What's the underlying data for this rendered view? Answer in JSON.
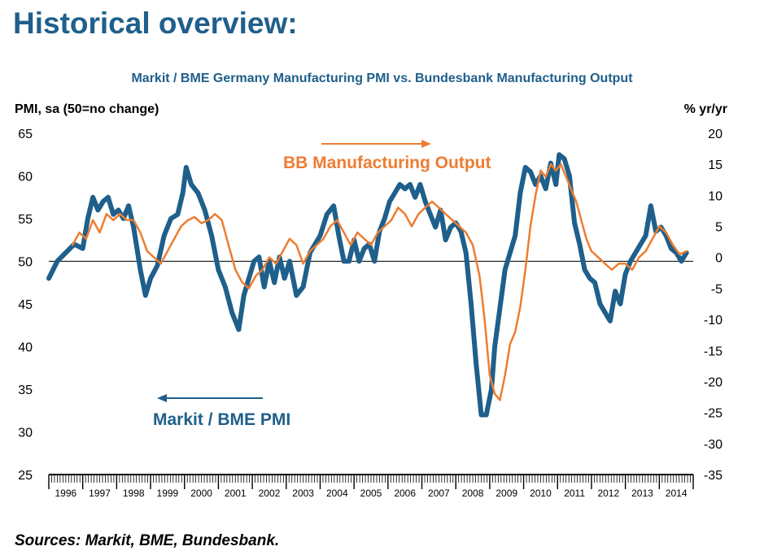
{
  "heading": "Historical overview:",
  "source": "Sources: Markit, BME, Bundesbank.",
  "colors": {
    "pmi": "#1f5f8b",
    "output": "#ed7d31",
    "title": "#1f5f8b"
  },
  "chart_data": {
    "type": "line",
    "title": "Markit / BME Germany Manufacturing PMI vs. Bundesbank Manufacturing Output",
    "ylabel_left": "PMI, sa (50=no change)",
    "ylabel_right": "% yr/yr",
    "ylim_left": [
      25,
      65
    ],
    "ylim_right": [
      -35,
      20
    ],
    "yticks_left": [
      25,
      30,
      35,
      40,
      45,
      50,
      55,
      60,
      65
    ],
    "yticks_right": [
      -35,
      -30,
      -25,
      -20,
      -15,
      -10,
      -5,
      0,
      5,
      10,
      15,
      20
    ],
    "xlim": [
      1996.0,
      2015.0
    ],
    "years": [
      "1996",
      "1997",
      "1998",
      "1999",
      "2000",
      "2001",
      "2002",
      "2003",
      "2004",
      "2005",
      "2006",
      "2007",
      "2008",
      "2009",
      "2010",
      "2011",
      "2012",
      "2013",
      "2014"
    ],
    "reference_line": {
      "axis": "left",
      "value": 50
    },
    "annotations": [
      {
        "text": "BB Manufacturing Output",
        "color": "#ed7d31",
        "arrow": "right"
      },
      {
        "text": "Markit / BME PMI",
        "color": "#1f5f8b",
        "arrow": "left"
      }
    ],
    "series": [
      {
        "name": "Markit / BME PMI",
        "axis": "left",
        "x": [
          1996.0,
          1996.25,
          1996.5,
          1996.75,
          1997.0,
          1997.15,
          1997.3,
          1997.45,
          1997.6,
          1997.75,
          1997.9,
          1998.05,
          1998.2,
          1998.35,
          1998.5,
          1998.7,
          1998.85,
          1999.0,
          1999.2,
          1999.4,
          1999.6,
          1999.8,
          1999.95,
          2000.05,
          2000.2,
          2000.4,
          2000.6,
          2000.8,
          2001.0,
          2001.2,
          2001.4,
          2001.6,
          2001.75,
          2001.9,
          2002.05,
          2002.2,
          2002.35,
          2002.5,
          2002.65,
          2002.8,
          2002.95,
          2003.1,
          2003.3,
          2003.5,
          2003.7,
          2003.85,
          2004.0,
          2004.2,
          2004.4,
          2004.55,
          2004.7,
          2004.85,
          2005.0,
          2005.15,
          2005.3,
          2005.45,
          2005.6,
          2005.75,
          2005.9,
          2006.05,
          2006.2,
          2006.35,
          2006.5,
          2006.65,
          2006.8,
          2006.95,
          2007.1,
          2007.25,
          2007.4,
          2007.55,
          2007.7,
          2007.85,
          2008.0,
          2008.15,
          2008.3,
          2008.45,
          2008.6,
          2008.75,
          2008.9,
          2009.05,
          2009.15,
          2009.3,
          2009.45,
          2009.6,
          2009.75,
          2009.9,
          2010.05,
          2010.2,
          2010.35,
          2010.5,
          2010.65,
          2010.8,
          2010.95,
          2011.05,
          2011.2,
          2011.35,
          2011.5,
          2011.65,
          2011.8,
          2011.95,
          2012.1,
          2012.25,
          2012.4,
          2012.55,
          2012.7,
          2012.85,
          2013.0,
          2013.15,
          2013.3,
          2013.45,
          2013.6,
          2013.75,
          2013.9,
          2014.05,
          2014.2,
          2014.35,
          2014.5,
          2014.65,
          2014.8
        ],
        "values": [
          48.0,
          50.0,
          51.0,
          52.0,
          51.5,
          55.0,
          57.5,
          56.0,
          57.0,
          57.5,
          55.5,
          56.0,
          55.0,
          56.5,
          54.0,
          49.0,
          46.0,
          48.0,
          49.5,
          53.0,
          55.0,
          55.5,
          58.0,
          61.0,
          59.0,
          58.0,
          56.0,
          53.0,
          49.0,
          47.0,
          44.0,
          42.0,
          46.0,
          48.0,
          50.0,
          50.5,
          47.0,
          50.0,
          47.5,
          50.5,
          48.0,
          50.0,
          46.0,
          47.0,
          51.0,
          52.0,
          53.0,
          55.5,
          56.5,
          53.0,
          50.0,
          50.0,
          52.5,
          50.0,
          51.5,
          52.0,
          50.0,
          53.5,
          55.0,
          57.0,
          58.0,
          59.0,
          58.5,
          59.0,
          57.5,
          59.0,
          57.0,
          55.5,
          54.0,
          56.0,
          52.5,
          54.0,
          54.5,
          53.5,
          51.0,
          45.0,
          38.0,
          32.0,
          32.0,
          35.0,
          40.0,
          44.5,
          49.0,
          51.0,
          53.0,
          58.0,
          61.0,
          60.5,
          59.0,
          60.0,
          58.5,
          61.5,
          59.0,
          62.5,
          62.0,
          60.0,
          54.5,
          52.0,
          49.0,
          48.0,
          47.5,
          45.0,
          44.0,
          43.0,
          46.5,
          45.0,
          48.5,
          50.0,
          51.0,
          52.0,
          53.0,
          56.5,
          53.5,
          54.0,
          53.0,
          51.5,
          51.0,
          50.0,
          51.0
        ]
      },
      {
        "name": "BB Manufacturing Output",
        "axis": "right",
        "x": [
          1996.7,
          1996.9,
          1997.1,
          1997.3,
          1997.5,
          1997.7,
          1997.9,
          1998.1,
          1998.3,
          1998.5,
          1998.7,
          1998.9,
          1999.1,
          1999.3,
          1999.5,
          1999.7,
          1999.9,
          2000.1,
          2000.3,
          2000.5,
          2000.7,
          2000.9,
          2001.1,
          2001.3,
          2001.5,
          2001.7,
          2001.9,
          2002.1,
          2002.3,
          2002.5,
          2002.7,
          2002.9,
          2003.1,
          2003.3,
          2003.5,
          2003.7,
          2003.9,
          2004.1,
          2004.3,
          2004.5,
          2004.7,
          2004.9,
          2005.1,
          2005.3,
          2005.5,
          2005.7,
          2005.9,
          2006.1,
          2006.3,
          2006.5,
          2006.7,
          2006.9,
          2007.1,
          2007.3,
          2007.5,
          2007.7,
          2007.9,
          2008.1,
          2008.3,
          2008.5,
          2008.7,
          2008.85,
          2009.0,
          2009.15,
          2009.3,
          2009.45,
          2009.6,
          2009.75,
          2009.9,
          2010.05,
          2010.2,
          2010.35,
          2010.5,
          2010.65,
          2010.8,
          2010.95,
          2011.1,
          2011.25,
          2011.4,
          2011.55,
          2011.7,
          2011.85,
          2012.0,
          2012.2,
          2012.4,
          2012.6,
          2012.8,
          2013.0,
          2013.2,
          2013.4,
          2013.6,
          2013.8,
          2014.0,
          2014.2,
          2014.4,
          2014.6,
          2014.8
        ],
        "values": [
          2.0,
          4.0,
          3.0,
          6.0,
          4.0,
          7.0,
          6.0,
          7.0,
          6.0,
          6.0,
          4.0,
          1.0,
          0.0,
          -1.0,
          1.0,
          3.0,
          5.0,
          6.0,
          6.5,
          5.5,
          6.0,
          7.0,
          6.0,
          2.0,
          -2.0,
          -4.0,
          -5.0,
          -3.0,
          -2.0,
          0.0,
          -1.0,
          1.0,
          3.0,
          2.0,
          -1.0,
          1.0,
          2.0,
          3.0,
          5.0,
          6.0,
          4.0,
          2.0,
          4.0,
          3.0,
          2.0,
          4.0,
          5.0,
          6.0,
          8.0,
          7.0,
          5.0,
          7.0,
          8.0,
          9.0,
          8.0,
          7.0,
          6.0,
          5.0,
          4.0,
          2.0,
          -3.0,
          -10.0,
          -19.0,
          -22.0,
          -23.0,
          -19.0,
          -14.0,
          -12.0,
          -8.0,
          -2.0,
          5.0,
          10.0,
          14.0,
          13.0,
          15.0,
          14.0,
          15.0,
          13.0,
          11.0,
          9.0,
          6.0,
          3.0,
          1.0,
          0.0,
          -1.0,
          -2.0,
          -1.0,
          -1.0,
          -2.0,
          0.0,
          1.0,
          3.0,
          5.0,
          4.0,
          2.0,
          0.5,
          1.0
        ]
      }
    ]
  }
}
